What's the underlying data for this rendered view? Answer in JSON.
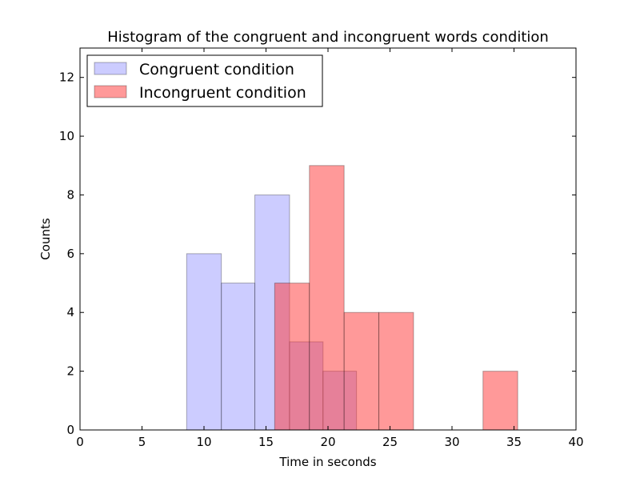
{
  "chart_data": {
    "type": "histogram",
    "title": "Histogram of the congruent and incongruent words condition",
    "xlabel": "Time in seconds",
    "ylabel": "Counts",
    "xlim": [
      0,
      40
    ],
    "ylim": [
      0,
      13
    ],
    "xticks": [
      0,
      5,
      10,
      15,
      20,
      25,
      30,
      35,
      40
    ],
    "yticks": [
      0,
      2,
      4,
      6,
      8,
      10,
      12
    ],
    "grid": false,
    "legend_position": "upper-left",
    "series": [
      {
        "name": "Congruent condition",
        "color": "#9999ff",
        "bins": [
          {
            "x0": 8.6,
            "x1": 11.4,
            "count": 6
          },
          {
            "x0": 11.4,
            "x1": 14.1,
            "count": 5
          },
          {
            "x0": 14.1,
            "x1": 16.9,
            "count": 8
          },
          {
            "x0": 16.9,
            "x1": 19.6,
            "count": 3
          },
          {
            "x0": 19.6,
            "x1": 22.3,
            "count": 2
          }
        ]
      },
      {
        "name": "Incongruent condition",
        "color": "#ff3333",
        "bins": [
          {
            "x0": 15.7,
            "x1": 18.5,
            "count": 5
          },
          {
            "x0": 18.5,
            "x1": 21.3,
            "count": 9
          },
          {
            "x0": 21.3,
            "x1": 24.1,
            "count": 4
          },
          {
            "x0": 24.1,
            "x1": 26.9,
            "count": 4
          },
          {
            "x0": 26.9,
            "x1": 29.7,
            "count": 0
          },
          {
            "x0": 29.7,
            "x1": 32.5,
            "count": 0
          },
          {
            "x0": 32.5,
            "x1": 35.3,
            "count": 2
          }
        ]
      }
    ]
  }
}
